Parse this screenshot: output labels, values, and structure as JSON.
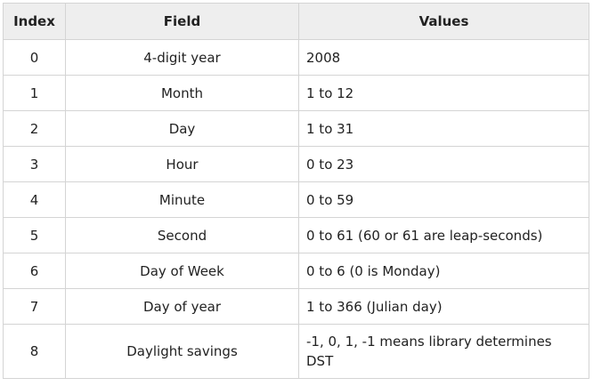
{
  "table": {
    "headers": [
      "Index",
      "Field",
      "Values"
    ],
    "rows": [
      {
        "index": "0",
        "field": "4-digit year",
        "value": "2008"
      },
      {
        "index": "1",
        "field": "Month",
        "value": "1 to 12"
      },
      {
        "index": "2",
        "field": "Day",
        "value": "1 to 31"
      },
      {
        "index": "3",
        "field": "Hour",
        "value": "0 to 23"
      },
      {
        "index": "4",
        "field": "Minute",
        "value": "0 to 59"
      },
      {
        "index": "5",
        "field": "Second",
        "value": "0 to 61 (60 or 61 are leap-seconds)"
      },
      {
        "index": "6",
        "field": "Day of Week",
        "value": "0 to 6 (0 is Monday)"
      },
      {
        "index": "7",
        "field": "Day of year",
        "value": "1 to 366 (Julian day)"
      },
      {
        "index": "8",
        "field": "Daylight savings",
        "value": "-1, 0, 1, -1 means library determines DST"
      }
    ]
  }
}
